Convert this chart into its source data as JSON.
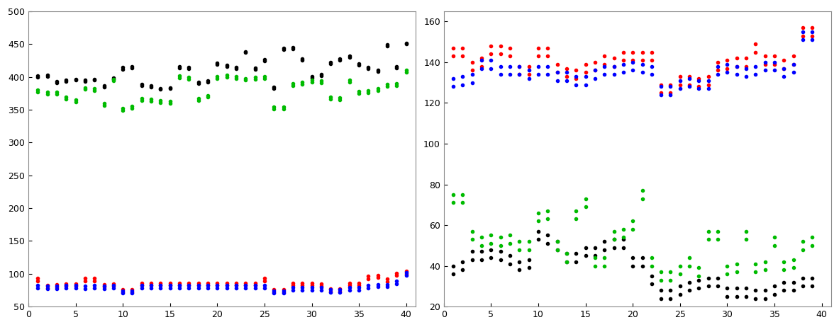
{
  "left": {
    "ylim": [
      50,
      500
    ],
    "xlim": [
      0,
      41
    ],
    "yticks": [
      50,
      100,
      150,
      200,
      250,
      300,
      350,
      400,
      450,
      500
    ],
    "xticks": [
      0,
      5,
      10,
      15,
      20,
      25,
      30,
      35,
      40
    ],
    "black_a": [
      400,
      401,
      391,
      393,
      395,
      393,
      395,
      385,
      397,
      412,
      414,
      387,
      385,
      381,
      382,
      414,
      413,
      390,
      392,
      419,
      416,
      413,
      437,
      412,
      425,
      383,
      442,
      443,
      426,
      399,
      402,
      420,
      426,
      430,
      418,
      413,
      408,
      447,
      414,
      450
    ],
    "black_b": [
      402,
      403,
      393,
      395,
      397,
      395,
      397,
      387,
      399,
      415,
      416,
      389,
      387,
      383,
      384,
      416,
      415,
      392,
      394,
      421,
      418,
      415,
      439,
      414,
      427,
      385,
      444,
      445,
      428,
      401,
      404,
      422,
      428,
      432,
      420,
      415,
      410,
      449,
      416,
      452
    ],
    "green_a": [
      380,
      377,
      377,
      369,
      365,
      384,
      382,
      360,
      397,
      352,
      355,
      367,
      366,
      364,
      363,
      402,
      400,
      367,
      372,
      401,
      403,
      401,
      398,
      400,
      401,
      354,
      354,
      390,
      392,
      395,
      394,
      369,
      368,
      395,
      378,
      379,
      382,
      389,
      390,
      410
    ],
    "green_b": [
      377,
      374,
      374,
      366,
      362,
      381,
      379,
      357,
      394,
      349,
      352,
      364,
      363,
      361,
      360,
      399,
      397,
      364,
      369,
      398,
      400,
      398,
      395,
      397,
      398,
      351,
      351,
      387,
      389,
      392,
      391,
      366,
      365,
      392,
      375,
      376,
      379,
      386,
      387,
      407
    ],
    "red_a": [
      93,
      82,
      83,
      85,
      85,
      93,
      93,
      84,
      85,
      76,
      76,
      86,
      86,
      86,
      86,
      86,
      86,
      86,
      86,
      86,
      86,
      86,
      86,
      86,
      93,
      76,
      76,
      86,
      86,
      86,
      85,
      77,
      77,
      86,
      86,
      96,
      98,
      92,
      101,
      104
    ],
    "red_b": [
      89,
      78,
      79,
      81,
      81,
      89,
      89,
      80,
      81,
      72,
      72,
      82,
      82,
      82,
      82,
      82,
      82,
      82,
      82,
      82,
      82,
      82,
      82,
      82,
      89,
      72,
      72,
      82,
      82,
      82,
      81,
      73,
      73,
      82,
      82,
      92,
      94,
      88,
      97,
      100
    ],
    "blue_a": [
      82,
      81,
      81,
      82,
      82,
      81,
      82,
      81,
      82,
      74,
      74,
      82,
      82,
      82,
      82,
      82,
      82,
      82,
      82,
      82,
      82,
      82,
      82,
      82,
      82,
      74,
      74,
      79,
      79,
      79,
      79,
      76,
      76,
      79,
      79,
      82,
      84,
      84,
      89,
      102
    ],
    "blue_b": [
      78,
      77,
      77,
      78,
      78,
      77,
      78,
      77,
      78,
      70,
      70,
      78,
      78,
      78,
      78,
      78,
      78,
      78,
      78,
      78,
      78,
      78,
      78,
      78,
      78,
      70,
      70,
      75,
      75,
      75,
      75,
      72,
      72,
      75,
      75,
      78,
      80,
      80,
      85,
      98
    ]
  },
  "right": {
    "ylim": [
      20,
      165
    ],
    "xlim": [
      0,
      41
    ],
    "yticks": [
      20,
      40,
      60,
      80,
      100,
      120,
      140,
      160
    ],
    "xticks": [
      0,
      5,
      10,
      15,
      20,
      25,
      30,
      35,
      40
    ],
    "red_a": [
      147,
      147,
      140,
      142,
      148,
      148,
      147,
      138,
      138,
      147,
      147,
      139,
      137,
      136,
      139,
      140,
      143,
      142,
      145,
      145,
      145,
      145,
      129,
      129,
      133,
      133,
      132,
      133,
      140,
      141,
      142,
      142,
      149,
      143,
      143,
      141,
      143,
      157,
      157
    ],
    "red_b": [
      143,
      143,
      136,
      138,
      144,
      144,
      143,
      134,
      134,
      143,
      143,
      135,
      133,
      132,
      135,
      136,
      139,
      138,
      141,
      141,
      141,
      141,
      125,
      125,
      129,
      129,
      128,
      129,
      136,
      137,
      138,
      138,
      145,
      139,
      139,
      137,
      139,
      153,
      153
    ],
    "blue_a": [
      132,
      133,
      134,
      141,
      141,
      138,
      138,
      138,
      136,
      138,
      138,
      135,
      135,
      133,
      133,
      136,
      138,
      138,
      139,
      140,
      139,
      138,
      128,
      128,
      131,
      132,
      131,
      131,
      138,
      139,
      138,
      137,
      138,
      140,
      140,
      137,
      139,
      155,
      155
    ],
    "blue_b": [
      128,
      129,
      130,
      137,
      137,
      134,
      134,
      134,
      132,
      134,
      134,
      131,
      131,
      129,
      129,
      132,
      134,
      134,
      135,
      136,
      135,
      134,
      124,
      124,
      127,
      128,
      127,
      127,
      134,
      135,
      134,
      133,
      134,
      136,
      136,
      133,
      135,
      151,
      151
    ],
    "black_a": [
      40,
      42,
      47,
      47,
      48,
      47,
      45,
      42,
      43,
      57,
      55,
      52,
      46,
      46,
      49,
      49,
      52,
      53,
      53,
      44,
      44,
      35,
      28,
      28,
      30,
      32,
      33,
      34,
      34,
      29,
      29,
      29,
      28,
      28,
      30,
      32,
      32,
      34,
      34
    ],
    "black_b": [
      36,
      38,
      43,
      43,
      44,
      43,
      41,
      38,
      39,
      53,
      51,
      48,
      42,
      42,
      45,
      45,
      48,
      49,
      49,
      40,
      40,
      31,
      24,
      24,
      26,
      28,
      29,
      30,
      30,
      25,
      25,
      25,
      24,
      24,
      26,
      28,
      28,
      30,
      30
    ],
    "green_a": [
      75,
      75,
      57,
      54,
      55,
      54,
      55,
      52,
      52,
      66,
      67,
      52,
      46,
      67,
      73,
      44,
      44,
      57,
      58,
      62,
      77,
      44,
      37,
      37,
      40,
      44,
      39,
      57,
      57,
      40,
      41,
      57,
      41,
      42,
      54,
      42,
      43,
      52,
      54
    ],
    "green_b": [
      71,
      71,
      53,
      50,
      51,
      50,
      51,
      48,
      48,
      62,
      63,
      48,
      42,
      63,
      69,
      40,
      40,
      53,
      54,
      58,
      73,
      40,
      33,
      33,
      36,
      40,
      35,
      53,
      53,
      36,
      37,
      53,
      37,
      38,
      50,
      38,
      39,
      48,
      50
    ]
  },
  "marker": ".",
  "marker_size": 6,
  "colors": {
    "black": "#000000",
    "green": "#00bb00",
    "red": "#ff0000",
    "blue": "#0000ff"
  },
  "bg_color": "#f0f0f0"
}
